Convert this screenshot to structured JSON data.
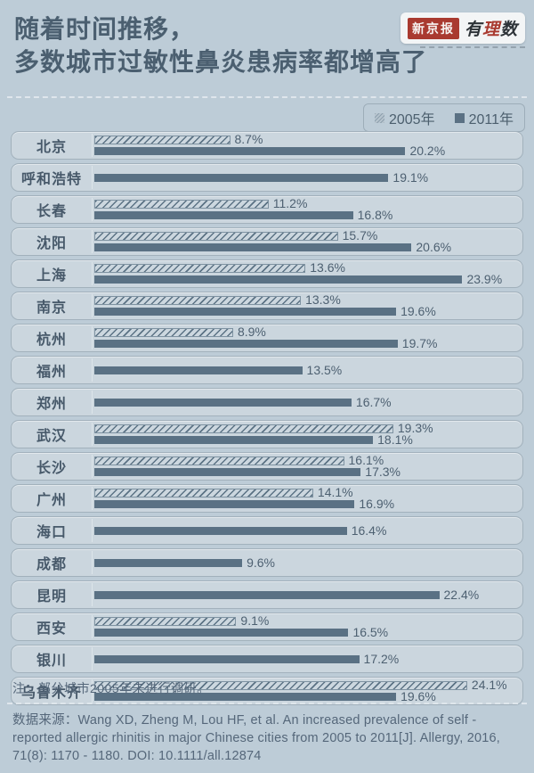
{
  "header": {
    "title_line1": "随着时间推移，",
    "title_line2": "多数城市过敏性鼻炎患病率都增高了",
    "logo": {
      "badge": "新京报",
      "script_char1": "有",
      "script_char2": "理",
      "script_char3": "数"
    }
  },
  "legend": [
    {
      "label": "2005年",
      "style": "hatched"
    },
    {
      "label": "2011年",
      "style": "solid"
    }
  ],
  "chart_data": {
    "type": "bar",
    "orientation": "horizontal",
    "title": "随着时间推移，多数城市过敏性鼻炎患病率都增高了",
    "value_suffix": "%",
    "xlim": [
      0,
      27.5
    ],
    "legend_position": "top-right",
    "categories": [
      "北京",
      "呼和浩特",
      "长春",
      "沈阳",
      "上海",
      "南京",
      "杭州",
      "福州",
      "郑州",
      "武汉",
      "长沙",
      "广州",
      "海口",
      "成都",
      "昆明",
      "西安",
      "银川",
      "乌鲁木齐"
    ],
    "series": [
      {
        "name": "2005年",
        "values": [
          8.7,
          null,
          11.2,
          15.7,
          13.6,
          13.3,
          8.9,
          null,
          null,
          19.3,
          16.1,
          14.1,
          null,
          null,
          null,
          9.1,
          null,
          24.1
        ]
      },
      {
        "name": "2011年",
        "values": [
          20.2,
          19.1,
          16.8,
          20.6,
          23.9,
          19.6,
          19.7,
          13.5,
          16.7,
          18.1,
          17.3,
          16.9,
          16.4,
          9.6,
          22.4,
          16.5,
          17.2,
          19.6
        ]
      }
    ]
  },
  "footer": {
    "note": "注：部分城市2005年未进行调研。",
    "source": "数据来源：Wang XD, Zheng M, Lou HF, et al. An increased prevalence of self - reported allergic rhinitis in major Chinese cities from 2005 to 2011[J]. Allergy, 2016, 71(8): 1170 - 1180. DOI: 10.1111/all.12874"
  },
  "colors": {
    "background": "#bdccd7",
    "card": "#cbd6de",
    "bar_solid": "#5a7184",
    "title_text": "#4b5f70",
    "brand_red": "#a93a30"
  }
}
